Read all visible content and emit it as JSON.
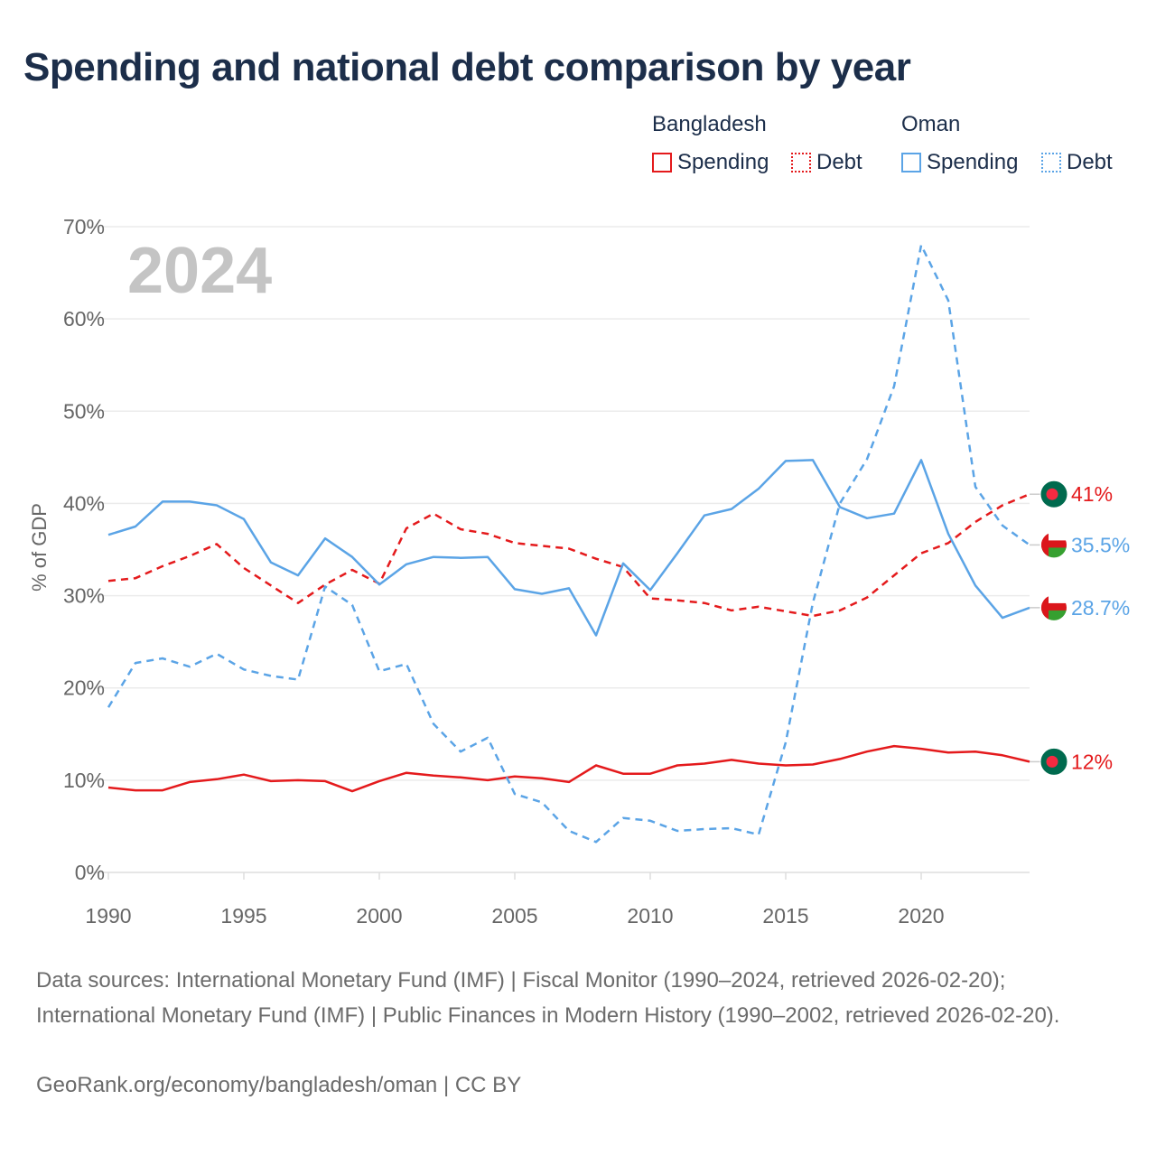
{
  "title": "Spending and national debt comparison by year",
  "legend": {
    "groups": [
      {
        "country": "Bangladesh",
        "items": [
          "Spending",
          "Debt"
        ],
        "color": "#e41a1c"
      },
      {
        "country": "Oman",
        "items": [
          "Spending",
          "Debt"
        ],
        "color": "#5ba4e6"
      }
    ]
  },
  "chart_data": {
    "type": "line",
    "title": "Spending and national debt comparison by year",
    "year_label": "2024",
    "xlabel": "",
    "ylabel": "% of GDP",
    "xlim": [
      1990,
      2024
    ],
    "ylim": [
      0,
      70
    ],
    "x_ticks": [
      1990,
      1995,
      2000,
      2005,
      2010,
      2015,
      2020
    ],
    "y_ticks": [
      {
        "value": 0,
        "label": "0%"
      },
      {
        "value": 10,
        "label": "10%"
      },
      {
        "value": 20,
        "label": "20%"
      },
      {
        "value": 30,
        "label": "30%"
      },
      {
        "value": 40,
        "label": "40%"
      },
      {
        "value": 50,
        "label": "50%"
      },
      {
        "value": 60,
        "label": "60%"
      },
      {
        "value": 70,
        "label": "70%"
      }
    ],
    "x": [
      1990,
      1991,
      1992,
      1993,
      1994,
      1995,
      1996,
      1997,
      1998,
      1999,
      2000,
      2001,
      2002,
      2003,
      2004,
      2005,
      2006,
      2007,
      2008,
      2009,
      2010,
      2011,
      2012,
      2013,
      2014,
      2015,
      2016,
      2017,
      2018,
      2019,
      2020,
      2021,
      2022,
      2023,
      2024
    ],
    "series": [
      {
        "name": "Bangladesh Spending",
        "country": "Bangladesh",
        "kind": "Spending",
        "color": "#e41a1c",
        "dashed": false,
        "end_label": "12%",
        "values": [
          9.2,
          8.9,
          8.9,
          9.8,
          10.1,
          10.6,
          9.9,
          10.0,
          9.9,
          8.8,
          9.9,
          10.8,
          10.5,
          10.3,
          10.0,
          10.4,
          10.2,
          9.8,
          11.6,
          10.7,
          10.7,
          11.6,
          11.8,
          12.2,
          11.8,
          11.6,
          11.7,
          12.3,
          13.1,
          13.7,
          13.4,
          13.0,
          13.1,
          12.7,
          12.0
        ]
      },
      {
        "name": "Bangladesh Debt",
        "country": "Bangladesh",
        "kind": "Debt",
        "color": "#e41a1c",
        "dashed": true,
        "end_label": "41%",
        "values": [
          31.6,
          31.9,
          33.2,
          34.3,
          35.6,
          33.0,
          31.1,
          29.2,
          31.2,
          32.8,
          31.3,
          37.3,
          38.9,
          37.2,
          36.7,
          35.7,
          35.4,
          35.1,
          34.0,
          33.1,
          29.7,
          29.5,
          29.2,
          28.4,
          28.8,
          28.3,
          27.8,
          28.4,
          29.8,
          32.2,
          34.6,
          35.7,
          38.0,
          39.8,
          41.0
        ]
      },
      {
        "name": "Oman Spending",
        "country": "Oman",
        "kind": "Spending",
        "color": "#5ba4e6",
        "dashed": false,
        "end_label": "28.7%",
        "values": [
          36.6,
          37.5,
          40.2,
          40.2,
          39.8,
          38.3,
          33.6,
          32.2,
          36.2,
          34.2,
          31.2,
          33.4,
          34.2,
          34.1,
          34.2,
          30.7,
          30.2,
          30.8,
          25.7,
          33.5,
          30.6,
          34.6,
          38.7,
          39.4,
          41.6,
          44.6,
          44.7,
          39.6,
          38.4,
          38.9,
          44.7,
          36.7,
          31.1,
          27.6,
          28.7
        ]
      },
      {
        "name": "Oman Debt",
        "country": "Oman",
        "kind": "Debt",
        "color": "#5ba4e6",
        "dashed": true,
        "end_label": "35.5%",
        "values": [
          17.9,
          22.7,
          23.2,
          22.3,
          23.7,
          22.0,
          21.3,
          20.9,
          31.0,
          29.0,
          21.8,
          22.6,
          16.1,
          13.1,
          14.6,
          8.5,
          7.6,
          4.5,
          3.3,
          5.9,
          5.6,
          4.5,
          4.7,
          4.8,
          4.1,
          14.1,
          29.2,
          40.0,
          44.8,
          52.7,
          68.0,
          62.0,
          41.8,
          37.6,
          35.5
        ]
      }
    ]
  },
  "footer": {
    "sources": "Data sources: International Monetary Fund (IMF) | Fiscal Monitor (1990–2024, retrieved 2026-02-20); International Monetary Fund (IMF) | Public Finances in Modern History (1990–2002, retrieved 2026-02-20).",
    "credit": "GeoRank.org/economy/bangladesh/oman | CC BY"
  }
}
